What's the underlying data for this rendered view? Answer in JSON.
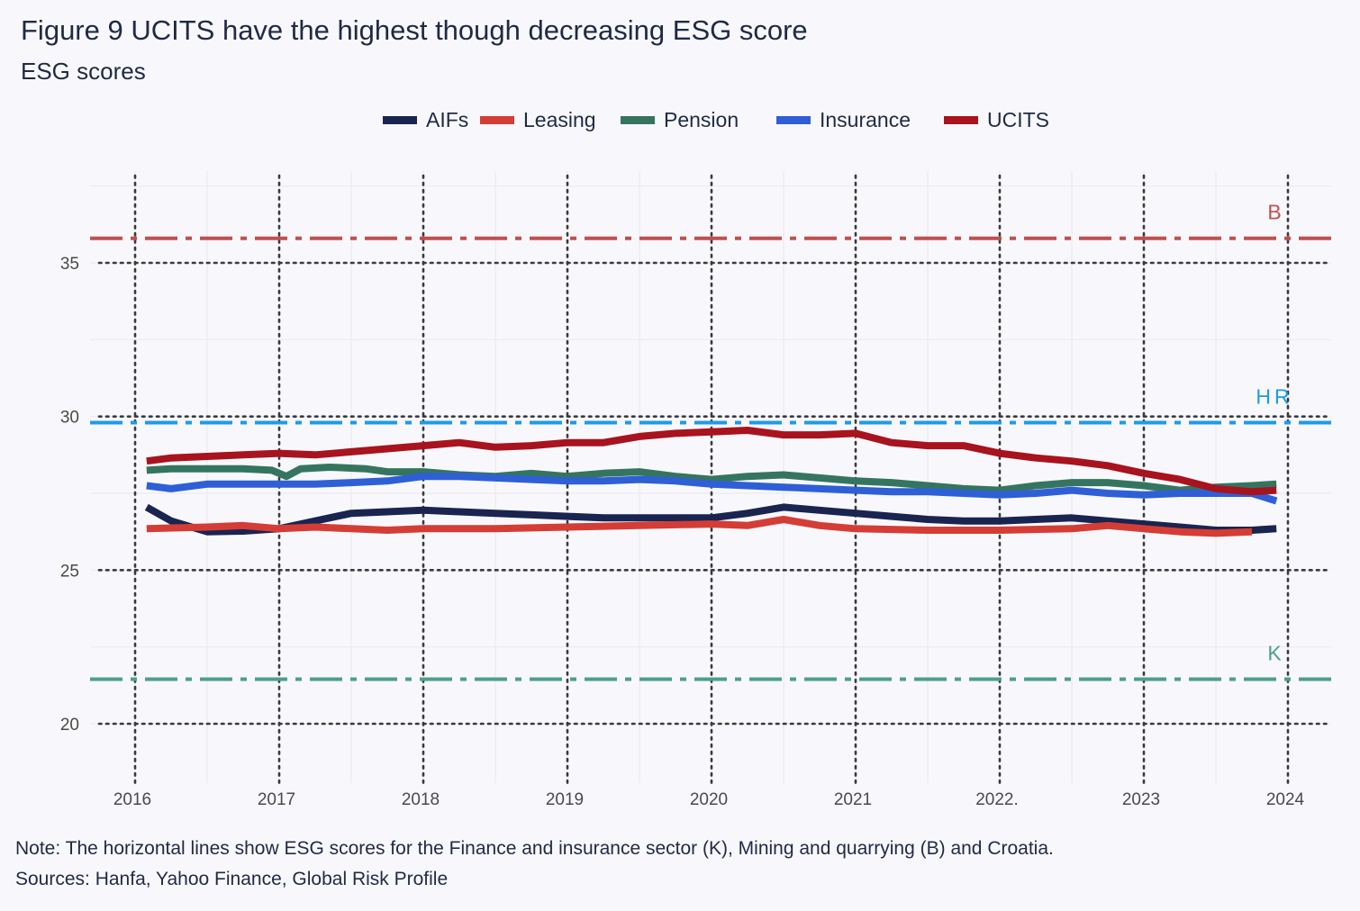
{
  "title": "Figure 9 UCITS have the highest though decreasing ESG score",
  "subtitle": "ESG scores",
  "note": "Note: The horizontal lines show ESG scores for the Finance and insurance sector (K), Mining and quarrying (B) and Croatia.",
  "sources": "Sources: Hanfa, Yahoo Finance, Global Risk Profile",
  "chart_data": {
    "type": "line",
    "title": "Figure 9 UCITS have the highest though decreasing ESG score",
    "subtitle": "ESG scores",
    "xlabel": "",
    "ylabel": "",
    "xlim": [
      2015.55,
      2024.3
    ],
    "ylim": [
      17.9,
      37.8
    ],
    "x_ticks": [
      2016,
      2017,
      2018,
      2019,
      2020,
      2021,
      2022,
      2023,
      2024
    ],
    "x_tick_labels": [
      "2016",
      "2017",
      "2018",
      "2019",
      "2020",
      "2021",
      "2022.",
      "2023",
      "2024"
    ],
    "y_ticks": [
      20,
      25,
      30,
      35
    ],
    "y_tick_labels": [
      "20",
      "25",
      "30",
      "35"
    ],
    "grid": true,
    "legend_position": "top",
    "reference_lines": [
      {
        "label": "B",
        "value": 35.8,
        "color": "#c0504d"
      },
      {
        "label": "HR",
        "value": 29.8,
        "color": "#1e9be6"
      },
      {
        "label": "K",
        "value": 21.45,
        "color": "#4e9e8c"
      }
    ],
    "series": [
      {
        "name": "AIFs",
        "color": "#1a2451",
        "points": [
          [
            2016.08,
            27.05
          ],
          [
            2016.25,
            26.6
          ],
          [
            2016.5,
            26.25
          ],
          [
            2016.75,
            26.27
          ],
          [
            2017.0,
            26.35
          ],
          [
            2017.25,
            26.6
          ],
          [
            2017.5,
            26.85
          ],
          [
            2017.75,
            26.9
          ],
          [
            2018.0,
            26.95
          ],
          [
            2018.25,
            26.9
          ],
          [
            2018.5,
            26.85
          ],
          [
            2018.75,
            26.8
          ],
          [
            2019.0,
            26.75
          ],
          [
            2019.25,
            26.7
          ],
          [
            2019.5,
            26.7
          ],
          [
            2019.75,
            26.7
          ],
          [
            2020.0,
            26.7
          ],
          [
            2020.25,
            26.85
          ],
          [
            2020.5,
            27.05
          ],
          [
            2020.75,
            26.95
          ],
          [
            2021.0,
            26.85
          ],
          [
            2021.25,
            26.75
          ],
          [
            2021.5,
            26.65
          ],
          [
            2021.75,
            26.6
          ],
          [
            2022.0,
            26.6
          ],
          [
            2022.25,
            26.65
          ],
          [
            2022.5,
            26.7
          ],
          [
            2022.75,
            26.6
          ],
          [
            2023.0,
            26.5
          ],
          [
            2023.25,
            26.4
          ],
          [
            2023.5,
            26.3
          ],
          [
            2023.75,
            26.3
          ],
          [
            2023.92,
            26.35
          ]
        ]
      },
      {
        "name": "Leasing",
        "color": "#d43d35",
        "points": [
          [
            2016.08,
            26.35
          ],
          [
            2016.5,
            26.4
          ],
          [
            2016.75,
            26.45
          ],
          [
            2017.0,
            26.35
          ],
          [
            2017.25,
            26.4
          ],
          [
            2017.5,
            26.35
          ],
          [
            2017.75,
            26.3
          ],
          [
            2018.0,
            26.35
          ],
          [
            2018.5,
            26.35
          ],
          [
            2019.0,
            26.4
          ],
          [
            2019.5,
            26.45
          ],
          [
            2020.0,
            26.5
          ],
          [
            2020.25,
            26.45
          ],
          [
            2020.5,
            26.65
          ],
          [
            2020.75,
            26.45
          ],
          [
            2021.0,
            26.35
          ],
          [
            2021.5,
            26.3
          ],
          [
            2022.0,
            26.3
          ],
          [
            2022.5,
            26.35
          ],
          [
            2022.75,
            26.45
          ],
          [
            2023.0,
            26.35
          ],
          [
            2023.25,
            26.25
          ],
          [
            2023.5,
            26.2
          ],
          [
            2023.75,
            26.25
          ]
        ]
      },
      {
        "name": "Pension",
        "color": "#357560",
        "points": [
          [
            2016.08,
            28.25
          ],
          [
            2016.25,
            28.3
          ],
          [
            2016.5,
            28.3
          ],
          [
            2016.75,
            28.3
          ],
          [
            2016.95,
            28.25
          ],
          [
            2017.05,
            28.05
          ],
          [
            2017.15,
            28.3
          ],
          [
            2017.35,
            28.35
          ],
          [
            2017.6,
            28.3
          ],
          [
            2017.75,
            28.2
          ],
          [
            2018.0,
            28.2
          ],
          [
            2018.25,
            28.1
          ],
          [
            2018.5,
            28.05
          ],
          [
            2018.75,
            28.15
          ],
          [
            2019.0,
            28.05
          ],
          [
            2019.25,
            28.15
          ],
          [
            2019.5,
            28.2
          ],
          [
            2019.75,
            28.05
          ],
          [
            2020.0,
            27.95
          ],
          [
            2020.25,
            28.05
          ],
          [
            2020.5,
            28.1
          ],
          [
            2020.75,
            28.0
          ],
          [
            2021.0,
            27.9
          ],
          [
            2021.25,
            27.85
          ],
          [
            2021.5,
            27.75
          ],
          [
            2021.75,
            27.65
          ],
          [
            2022.0,
            27.6
          ],
          [
            2022.25,
            27.75
          ],
          [
            2022.5,
            27.85
          ],
          [
            2022.75,
            27.85
          ],
          [
            2023.0,
            27.75
          ],
          [
            2023.25,
            27.6
          ],
          [
            2023.5,
            27.7
          ],
          [
            2023.75,
            27.75
          ],
          [
            2023.92,
            27.8
          ]
        ]
      },
      {
        "name": "Insurance",
        "color": "#2f5fd6",
        "points": [
          [
            2016.08,
            27.75
          ],
          [
            2016.25,
            27.65
          ],
          [
            2016.5,
            27.8
          ],
          [
            2016.75,
            27.8
          ],
          [
            2017.0,
            27.8
          ],
          [
            2017.25,
            27.8
          ],
          [
            2017.5,
            27.85
          ],
          [
            2017.75,
            27.9
          ],
          [
            2018.0,
            28.05
          ],
          [
            2018.25,
            28.05
          ],
          [
            2018.5,
            28.0
          ],
          [
            2018.75,
            27.95
          ],
          [
            2019.0,
            27.9
          ],
          [
            2019.25,
            27.9
          ],
          [
            2019.5,
            27.95
          ],
          [
            2019.75,
            27.9
          ],
          [
            2020.0,
            27.8
          ],
          [
            2020.25,
            27.75
          ],
          [
            2020.5,
            27.7
          ],
          [
            2020.75,
            27.65
          ],
          [
            2021.0,
            27.6
          ],
          [
            2021.25,
            27.55
          ],
          [
            2021.5,
            27.55
          ],
          [
            2021.75,
            27.5
          ],
          [
            2022.0,
            27.45
          ],
          [
            2022.25,
            27.5
          ],
          [
            2022.5,
            27.6
          ],
          [
            2022.75,
            27.5
          ],
          [
            2023.0,
            27.45
          ],
          [
            2023.25,
            27.5
          ],
          [
            2023.5,
            27.5
          ],
          [
            2023.75,
            27.5
          ],
          [
            2023.92,
            27.25
          ]
        ]
      },
      {
        "name": "UCITS",
        "color": "#a8131e",
        "points": [
          [
            2016.08,
            28.55
          ],
          [
            2016.25,
            28.65
          ],
          [
            2016.5,
            28.7
          ],
          [
            2016.75,
            28.75
          ],
          [
            2017.0,
            28.8
          ],
          [
            2017.25,
            28.75
          ],
          [
            2017.5,
            28.85
          ],
          [
            2017.75,
            28.95
          ],
          [
            2018.0,
            29.05
          ],
          [
            2018.25,
            29.15
          ],
          [
            2018.5,
            29.0
          ],
          [
            2018.75,
            29.05
          ],
          [
            2019.0,
            29.15
          ],
          [
            2019.25,
            29.15
          ],
          [
            2019.5,
            29.35
          ],
          [
            2019.75,
            29.45
          ],
          [
            2020.0,
            29.5
          ],
          [
            2020.25,
            29.55
          ],
          [
            2020.5,
            29.4
          ],
          [
            2020.75,
            29.4
          ],
          [
            2021.0,
            29.45
          ],
          [
            2021.25,
            29.15
          ],
          [
            2021.5,
            29.05
          ],
          [
            2021.75,
            29.05
          ],
          [
            2022.0,
            28.8
          ],
          [
            2022.25,
            28.65
          ],
          [
            2022.5,
            28.55
          ],
          [
            2022.75,
            28.4
          ],
          [
            2023.0,
            28.15
          ],
          [
            2023.25,
            27.95
          ],
          [
            2023.5,
            27.65
          ],
          [
            2023.75,
            27.55
          ],
          [
            2023.92,
            27.6
          ]
        ]
      }
    ]
  }
}
